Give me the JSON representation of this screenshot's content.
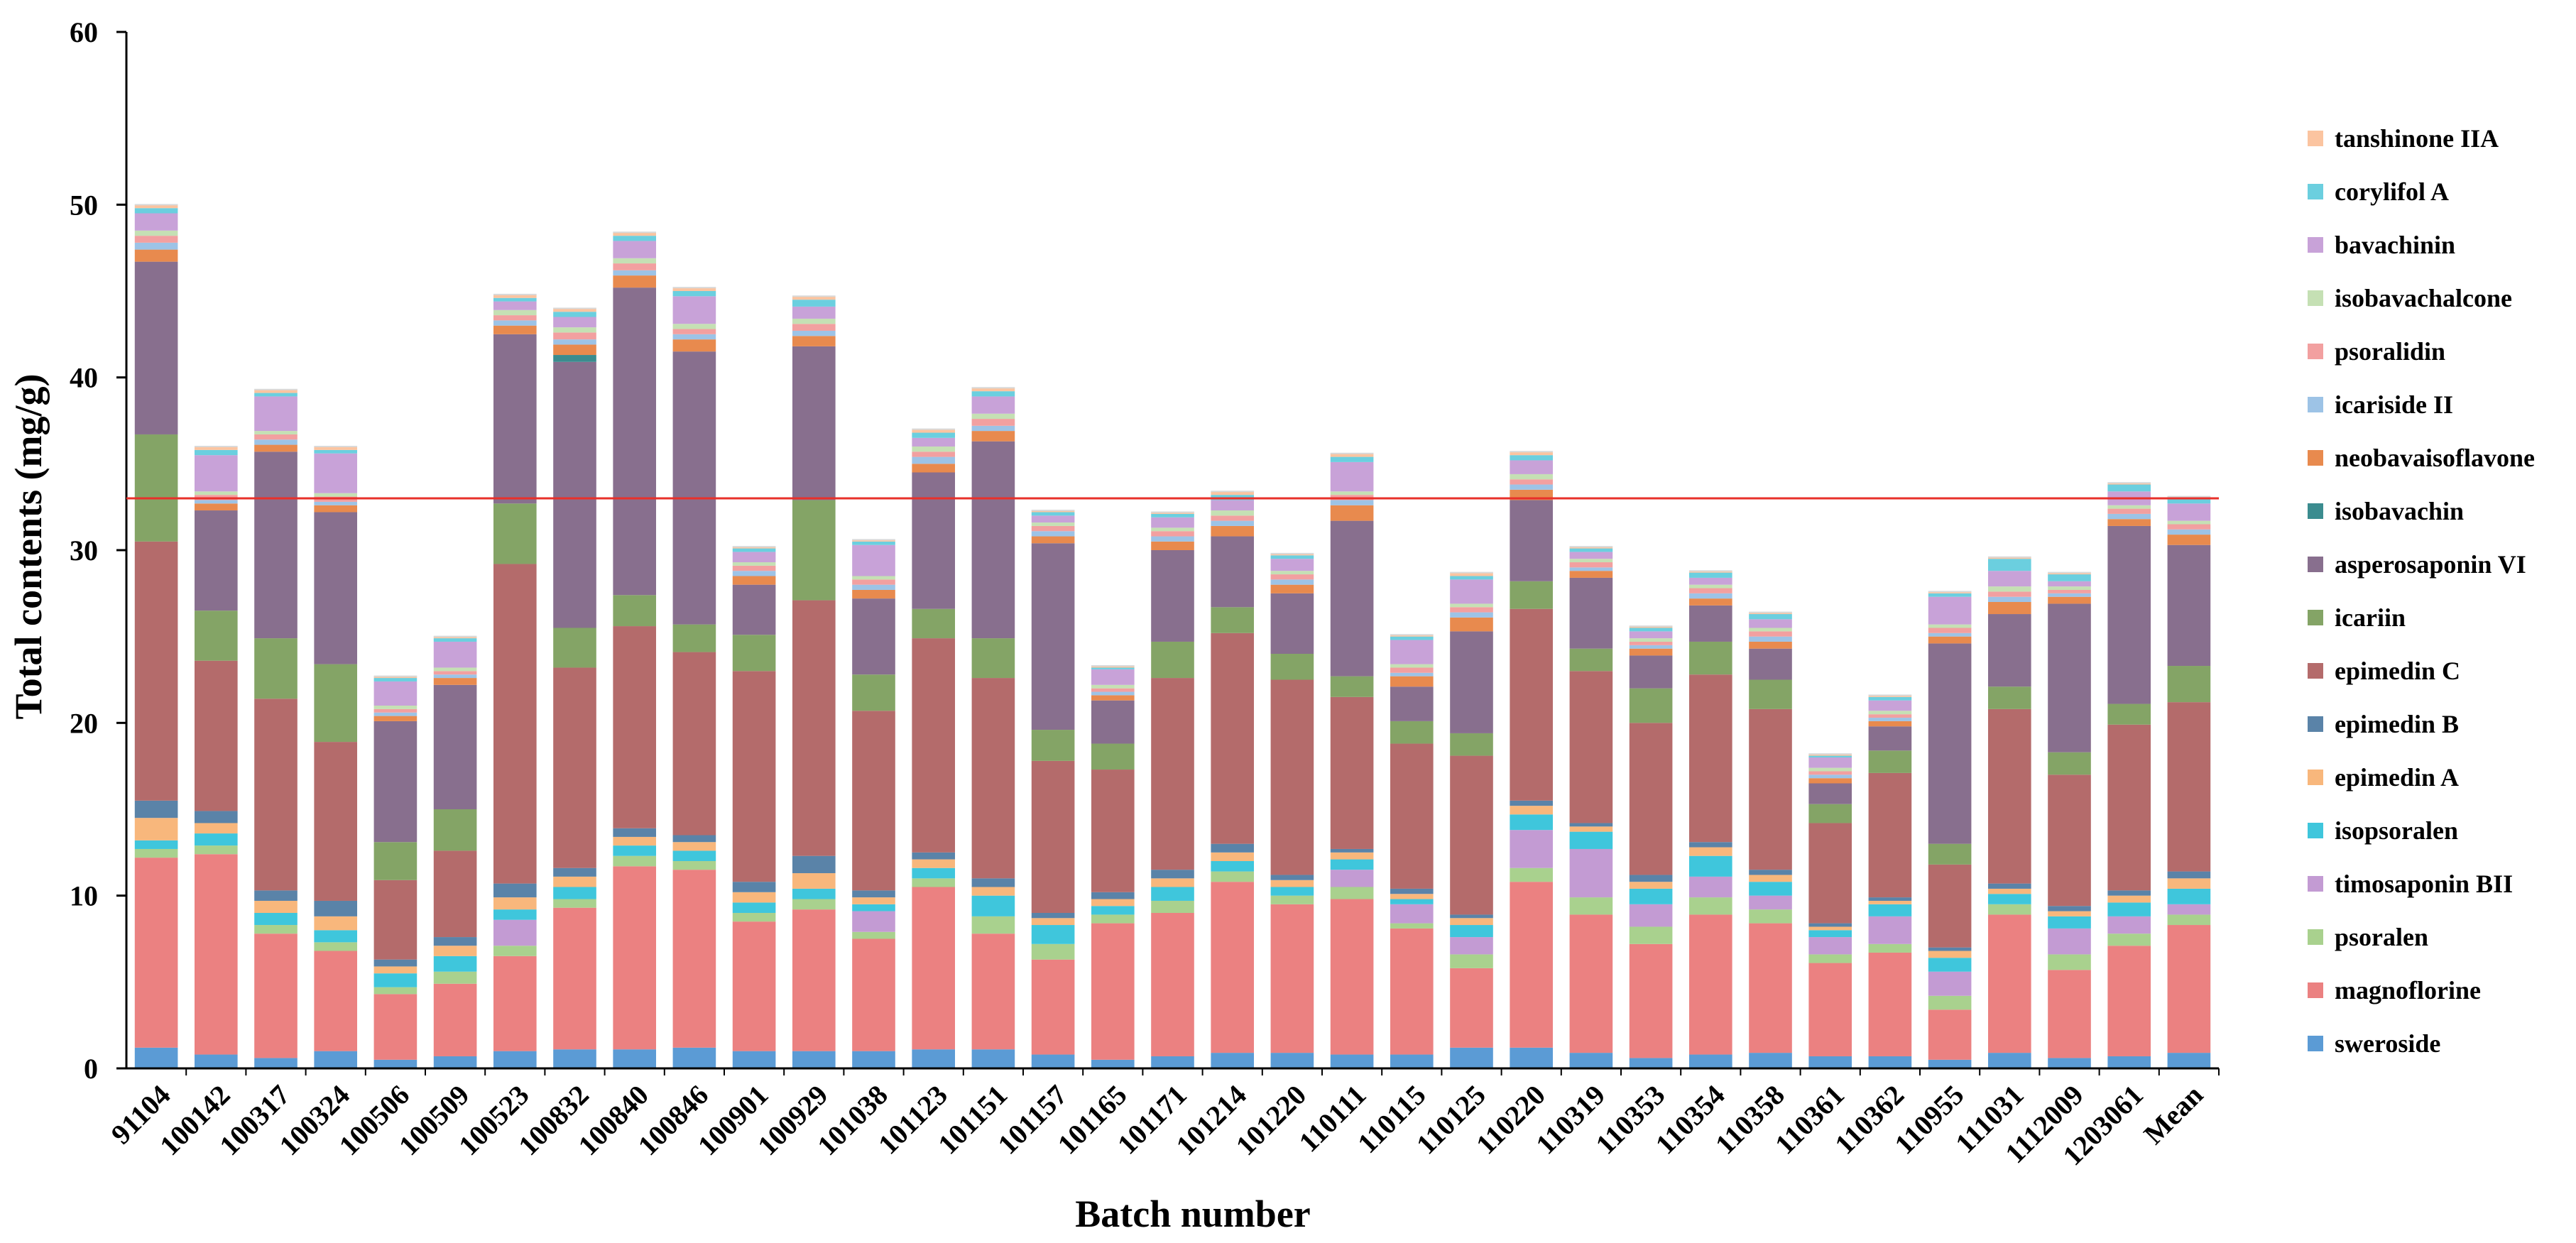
{
  "chart_data": {
    "type": "stacked-bar",
    "title": "",
    "xlabel": "Batch number",
    "ylabel": "Total contents (mg/g)",
    "ylim": [
      0,
      60
    ],
    "yticks": [
      0,
      10,
      20,
      30,
      40,
      50,
      60
    ],
    "grid": false,
    "legend_position": "right",
    "reference_line": {
      "y": 33,
      "color": "#e8302a"
    },
    "categories": [
      "91104",
      "100142",
      "100317",
      "100324",
      "100506",
      "100509",
      "100523",
      "100832",
      "100840",
      "100846",
      "100901",
      "100929",
      "101038",
      "101123",
      "101151",
      "101157",
      "101165",
      "101171",
      "101214",
      "101220",
      "110111",
      "110115",
      "110125",
      "110220",
      "110319",
      "110353",
      "110354",
      "110358",
      "110361",
      "110362",
      "110955",
      "111031",
      "1112009",
      "1203061",
      "Mean"
    ],
    "series": [
      {
        "name": "sweroside",
        "color": "#5b9bd5",
        "values": [
          1.2,
          0.8,
          0.6,
          1.0,
          0.5,
          0.7,
          1.0,
          1.1,
          1.1,
          1.2,
          1.0,
          1.0,
          1.0,
          1.1,
          1.1,
          0.8,
          0.5,
          0.7,
          0.9,
          0.9,
          0.8,
          0.8,
          1.2,
          1.2,
          0.9,
          0.6,
          0.8,
          0.9,
          0.7,
          0.7,
          0.5,
          0.9,
          0.6,
          0.7,
          0.9
        ]
      },
      {
        "name": "magnoflorine",
        "color": "#eb8181",
        "values": [
          11.0,
          11.6,
          7.2,
          5.8,
          3.8,
          4.2,
          5.5,
          8.2,
          10.6,
          10.3,
          7.5,
          8.2,
          6.5,
          9.4,
          6.7,
          5.5,
          7.9,
          8.3,
          9.9,
          8.6,
          9.0,
          7.3,
          4.6,
          9.6,
          8.0,
          6.6,
          8.1,
          7.5,
          5.4,
          6.0,
          2.9,
          8.0,
          5.1,
          6.4,
          7.4
        ]
      },
      {
        "name": "psoralen",
        "color": "#a9d18e",
        "values": [
          0.5,
          0.5,
          0.5,
          0.5,
          0.4,
          0.7,
          0.6,
          0.5,
          0.6,
          0.5,
          0.5,
          0.6,
          0.4,
          0.5,
          1.0,
          0.9,
          0.5,
          0.7,
          0.6,
          0.5,
          0.7,
          0.3,
          0.8,
          0.8,
          1.0,
          1.0,
          1.0,
          0.8,
          0.5,
          0.5,
          0.8,
          0.6,
          0.9,
          0.7,
          0.6
        ]
      },
      {
        "name": "timosaponin BII",
        "color": "#c39bd3",
        "values": [
          0.0,
          0.0,
          0.0,
          0.0,
          0.0,
          0.0,
          1.5,
          0.0,
          0.0,
          0.0,
          0.0,
          0.0,
          1.2,
          0.0,
          0.0,
          0.0,
          0.0,
          0.0,
          0.0,
          0.0,
          1.0,
          1.1,
          1.0,
          2.2,
          2.8,
          1.3,
          1.2,
          0.8,
          1.0,
          1.6,
          1.4,
          0.0,
          1.5,
          1.0,
          0.6
        ]
      },
      {
        "name": "isopsoralen",
        "color": "#3fc6dc",
        "values": [
          0.5,
          0.7,
          0.7,
          0.7,
          0.8,
          0.9,
          0.6,
          0.7,
          0.6,
          0.6,
          0.6,
          0.6,
          0.4,
          0.6,
          1.2,
          1.1,
          0.5,
          0.8,
          0.6,
          0.5,
          0.6,
          0.3,
          0.7,
          0.9,
          1.0,
          0.9,
          1.2,
          0.8,
          0.4,
          0.7,
          0.8,
          0.6,
          0.7,
          0.8,
          0.9
        ]
      },
      {
        "name": "epimedin A",
        "color": "#f8b77c",
        "values": [
          1.3,
          0.6,
          0.7,
          0.8,
          0.4,
          0.6,
          0.7,
          0.6,
          0.5,
          0.5,
          0.6,
          0.9,
          0.4,
          0.5,
          0.5,
          0.4,
          0.4,
          0.5,
          0.5,
          0.4,
          0.4,
          0.3,
          0.4,
          0.5,
          0.3,
          0.4,
          0.5,
          0.4,
          0.2,
          0.2,
          0.4,
          0.3,
          0.3,
          0.4,
          0.6
        ]
      },
      {
        "name": "epimedin B",
        "color": "#5a83a8",
        "values": [
          1.0,
          0.7,
          0.6,
          0.9,
          0.4,
          0.5,
          0.8,
          0.5,
          0.5,
          0.4,
          0.6,
          1.0,
          0.4,
          0.4,
          0.5,
          0.3,
          0.4,
          0.5,
          0.5,
          0.3,
          0.2,
          0.3,
          0.2,
          0.3,
          0.2,
          0.4,
          0.3,
          0.3,
          0.2,
          0.2,
          0.2,
          0.3,
          0.3,
          0.3,
          0.4
        ]
      },
      {
        "name": "epimedin C",
        "color": "#b46b6b",
        "values": [
          15.0,
          8.7,
          11.1,
          9.2,
          4.6,
          5.0,
          18.5,
          11.6,
          11.7,
          10.6,
          12.2,
          14.8,
          10.4,
          12.4,
          11.6,
          8.8,
          7.1,
          11.1,
          12.2,
          11.3,
          8.8,
          8.4,
          9.2,
          11.1,
          8.8,
          8.8,
          9.7,
          9.3,
          5.8,
          7.2,
          4.8,
          10.1,
          7.6,
          9.6,
          9.8
        ]
      },
      {
        "name": "icariin",
        "color": "#84a466",
        "values": [
          6.2,
          2.9,
          3.5,
          4.5,
          2.2,
          2.4,
          3.5,
          2.3,
          1.8,
          1.6,
          2.1,
          5.8,
          2.1,
          1.7,
          2.3,
          1.8,
          1.5,
          2.1,
          1.5,
          1.5,
          1.2,
          1.3,
          1.3,
          1.6,
          1.3,
          2.0,
          1.9,
          1.7,
          1.1,
          1.3,
          1.2,
          1.3,
          1.3,
          1.2,
          2.1
        ]
      },
      {
        "name": "asperosaponin VI",
        "color": "#886f8e",
        "values": [
          10.0,
          5.8,
          10.8,
          8.8,
          7.0,
          7.2,
          9.8,
          15.4,
          17.8,
          15.8,
          2.9,
          8.9,
          4.4,
          7.9,
          11.4,
          10.8,
          2.5,
          5.3,
          4.1,
          3.5,
          9.0,
          2.0,
          5.9,
          4.7,
          4.1,
          1.9,
          2.1,
          1.8,
          1.2,
          1.4,
          11.6,
          4.2,
          8.6,
          10.3,
          7.0
        ]
      },
      {
        "name": "isobavachin",
        "color": "#3b8c8f",
        "values": [
          0.0,
          0.0,
          0.0,
          0.0,
          0.0,
          0.0,
          0.0,
          0.4,
          0.0,
          0.0,
          0.0,
          0.0,
          0.0,
          0.0,
          0.0,
          0.0,
          0.0,
          0.0,
          0.0,
          0.0,
          0.0,
          0.0,
          0.0,
          0.0,
          0.0,
          0.0,
          0.0,
          0.0,
          0.0,
          0.0,
          0.0,
          0.0,
          0.0,
          0.0,
          0.0
        ]
      },
      {
        "name": "neobavaisoflavone",
        "color": "#e88a4e",
        "values": [
          0.7,
          0.4,
          0.4,
          0.4,
          0.3,
          0.4,
          0.5,
          0.6,
          0.7,
          0.7,
          0.5,
          0.6,
          0.5,
          0.5,
          0.6,
          0.4,
          0.3,
          0.5,
          0.6,
          0.5,
          0.9,
          0.6,
          0.8,
          0.6,
          0.4,
          0.4,
          0.4,
          0.4,
          0.3,
          0.3,
          0.4,
          0.7,
          0.4,
          0.4,
          0.6
        ]
      },
      {
        "name": "icariside II",
        "color": "#9dc3e6",
        "values": [
          0.4,
          0.2,
          0.3,
          0.2,
          0.2,
          0.2,
          0.3,
          0.3,
          0.3,
          0.3,
          0.3,
          0.3,
          0.3,
          0.4,
          0.3,
          0.3,
          0.2,
          0.3,
          0.3,
          0.3,
          0.3,
          0.2,
          0.3,
          0.3,
          0.2,
          0.2,
          0.3,
          0.3,
          0.2,
          0.2,
          0.2,
          0.3,
          0.2,
          0.3,
          0.3
        ]
      },
      {
        "name": "psoralidin",
        "color": "#f2a0a0",
        "values": [
          0.4,
          0.3,
          0.3,
          0.3,
          0.2,
          0.2,
          0.3,
          0.4,
          0.4,
          0.3,
          0.3,
          0.4,
          0.3,
          0.3,
          0.4,
          0.3,
          0.2,
          0.3,
          0.3,
          0.3,
          0.3,
          0.3,
          0.3,
          0.3,
          0.3,
          0.2,
          0.3,
          0.3,
          0.2,
          0.2,
          0.3,
          0.3,
          0.2,
          0.3,
          0.3
        ]
      },
      {
        "name": "isobavachalcone",
        "color": "#c5e0b4",
        "values": [
          0.3,
          0.2,
          0.2,
          0.2,
          0.2,
          0.2,
          0.3,
          0.3,
          0.3,
          0.3,
          0.2,
          0.3,
          0.2,
          0.3,
          0.3,
          0.2,
          0.2,
          0.2,
          0.3,
          0.2,
          0.2,
          0.2,
          0.2,
          0.3,
          0.2,
          0.2,
          0.2,
          0.2,
          0.2,
          0.2,
          0.2,
          0.3,
          0.2,
          0.2,
          0.2
        ]
      },
      {
        "name": "bavachinin",
        "color": "#c8a2d8",
        "values": [
          1.0,
          2.1,
          2.0,
          2.3,
          1.4,
          1.5,
          0.5,
          0.6,
          1.0,
          1.6,
          0.6,
          0.7,
          1.8,
          0.5,
          1.0,
          0.4,
          0.9,
          0.6,
          0.6,
          0.7,
          1.7,
          1.4,
          1.4,
          0.8,
          0.4,
          0.4,
          0.4,
          0.5,
          0.6,
          0.6,
          1.6,
          0.9,
          0.3,
          0.8,
          1.0
        ]
      },
      {
        "name": "corylifol A",
        "color": "#6bcfdf",
        "values": [
          0.3,
          0.3,
          0.2,
          0.2,
          0.2,
          0.2,
          0.2,
          0.3,
          0.3,
          0.3,
          0.2,
          0.4,
          0.2,
          0.3,
          0.3,
          0.2,
          0.1,
          0.2,
          0.3,
          0.2,
          0.3,
          0.2,
          0.2,
          0.3,
          0.2,
          0.2,
          0.3,
          0.3,
          0.1,
          0.2,
          0.2,
          0.7,
          0.4,
          0.4,
          0.3
        ]
      },
      {
        "name": "tanshinone IIA",
        "color": "#fbc4a0",
        "values": [
          0.2,
          0.2,
          0.2,
          0.2,
          0.1,
          0.1,
          0.2,
          0.2,
          0.2,
          0.2,
          0.1,
          0.2,
          0.1,
          0.2,
          0.2,
          0.1,
          0.1,
          0.1,
          0.2,
          0.1,
          0.2,
          0.1,
          0.2,
          0.2,
          0.1,
          0.1,
          0.1,
          0.1,
          0.1,
          0.1,
          0.1,
          0.1,
          0.1,
          0.1,
          0.1
        ]
      }
    ]
  }
}
